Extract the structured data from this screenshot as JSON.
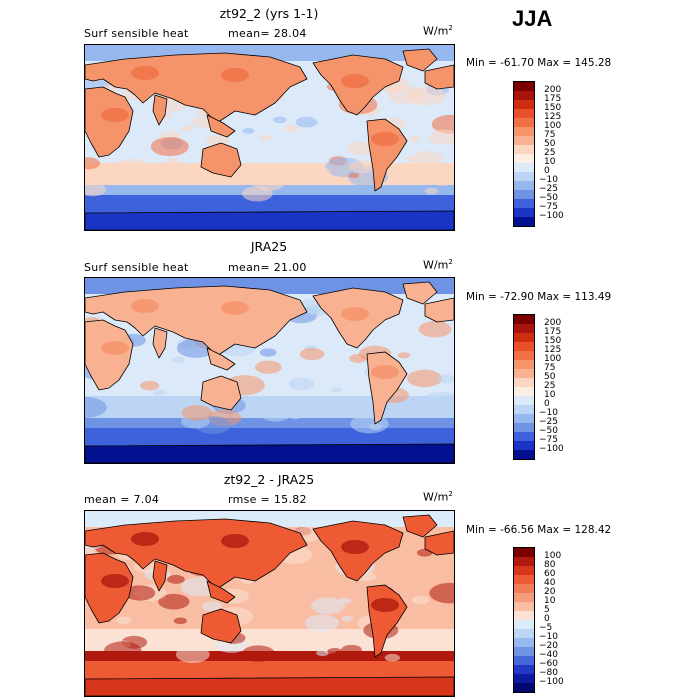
{
  "season": "JJA",
  "panels": [
    {
      "title": "zt92_2 (yrs 1-1)",
      "variable": "Surf sensible heat",
      "stat_text": "mean=  28.04",
      "rmse_text": "",
      "units_base": "W/m",
      "units_exp": "2",
      "minmax": "Min = -61.70 Max = 145.28",
      "colorbar_labels": [
        "200",
        "175",
        "150",
        "125",
        "100",
        "75",
        "50",
        "25",
        "10",
        "0",
        "−10",
        "−25",
        "−50",
        "−75",
        "−100"
      ],
      "colorbar_colors": [
        "#7a0000",
        "#a8140c",
        "#cf2d12",
        "#e8502a",
        "#f07046",
        "#f5936a",
        "#f8b191",
        "#fbd7c2",
        "#fbeee4",
        "#dbe9f8",
        "#bcd5f4",
        "#96b8ee",
        "#6e93e4",
        "#3d62db",
        "#1a34c6",
        "#03108f"
      ],
      "colorbar_ticks_centered": false
    },
    {
      "title": "JRA25",
      "variable": "Surf sensible heat",
      "stat_text": "mean=  21.00",
      "rmse_text": "",
      "units_base": "W/m",
      "units_exp": "2",
      "minmax": "Min = -72.90 Max = 113.49",
      "colorbar_labels": [
        "200",
        "175",
        "150",
        "125",
        "100",
        "75",
        "50",
        "25",
        "10",
        "0",
        "−10",
        "−25",
        "−50",
        "−75",
        "−100"
      ],
      "colorbar_colors": [
        "#7a0000",
        "#a8140c",
        "#cf2d12",
        "#e8502a",
        "#f07046",
        "#f5936a",
        "#f8b191",
        "#fbd7c2",
        "#fbeee4",
        "#dbe9f8",
        "#bcd5f4",
        "#96b8ee",
        "#6e93e4",
        "#3d62db",
        "#1a34c6",
        "#03108f"
      ],
      "colorbar_ticks_centered": false
    },
    {
      "title": "zt92_2 - JRA25",
      "variable": "",
      "stat_text": "mean =   7.04",
      "rmse_text": "rmse =  15.82",
      "units_base": "W/m",
      "units_exp": "2",
      "minmax": "Min = -66.56 Max = 128.42",
      "colorbar_labels": [
        "100",
        "80",
        "60",
        "40",
        "20",
        "10",
        "5",
        "0",
        "−5",
        "−10",
        "−20",
        "−40",
        "−60",
        "−80",
        "−100"
      ],
      "colorbar_colors": [
        "#7a0000",
        "#b01a0e",
        "#d8361a",
        "#ee5a34",
        "#f27c56",
        "#f69c7c",
        "#f9bda3",
        "#fce2d4",
        "#dcebf9",
        "#bdd6f4",
        "#97b9ee",
        "#6e93e4",
        "#4567da",
        "#2237c4",
        "#0c1aa0",
        "#03086e"
      ],
      "colorbar_ticks_centered": true
    }
  ]
}
